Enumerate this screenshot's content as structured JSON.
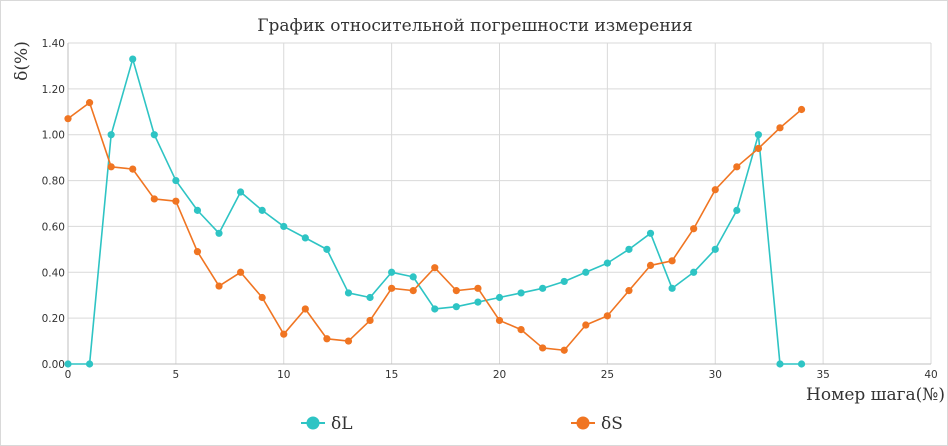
{
  "chart_data": {
    "type": "line",
    "title": "График относительной погрешности измерения",
    "xlabel": "Номер шага(№)",
    "ylabel": "δ(%)",
    "xlim": [
      0,
      40
    ],
    "ylim": [
      0,
      1.4
    ],
    "x_ticks": [
      0,
      5,
      10,
      15,
      20,
      25,
      30,
      35,
      40
    ],
    "y_ticks": [
      0.0,
      0.2,
      0.4,
      0.6,
      0.8,
      1.0,
      1.2,
      1.4
    ],
    "y_tick_labels": [
      "0.00",
      "0.20",
      "0.40",
      "0.60",
      "0.80",
      "1.00",
      "1.20",
      "1.40"
    ],
    "grid": true,
    "legend_position": "bottom",
    "x": [
      0,
      1,
      2,
      3,
      4,
      5,
      6,
      7,
      8,
      9,
      10,
      11,
      12,
      13,
      14,
      15,
      16,
      17,
      18,
      19,
      20,
      21,
      22,
      23,
      24,
      25,
      26,
      27,
      28,
      29,
      30,
      31,
      32,
      33,
      34
    ],
    "series": [
      {
        "name": "δL",
        "color": "#2ec4c4",
        "values": [
          0.0,
          0.0,
          1.0,
          1.33,
          1.0,
          0.8,
          0.67,
          0.57,
          0.75,
          0.67,
          0.6,
          0.55,
          0.5,
          0.31,
          0.29,
          0.4,
          0.38,
          0.24,
          0.25,
          0.27,
          0.29,
          0.31,
          0.33,
          0.36,
          0.4,
          0.44,
          0.5,
          0.57,
          0.33,
          0.4,
          0.5,
          0.67,
          1.0,
          0.0,
          0.0
        ]
      },
      {
        "name": "δS",
        "color": "#f07522",
        "values": [
          1.07,
          1.14,
          0.86,
          0.85,
          0.72,
          0.71,
          0.49,
          0.34,
          0.4,
          0.29,
          0.13,
          0.24,
          0.11,
          0.1,
          0.19,
          0.33,
          0.32,
          0.42,
          0.32,
          0.33,
          0.19,
          0.15,
          0.07,
          0.06,
          0.17,
          0.21,
          0.32,
          0.43,
          0.45,
          0.59,
          0.76,
          0.86,
          0.94,
          1.03,
          1.11
        ]
      }
    ]
  }
}
